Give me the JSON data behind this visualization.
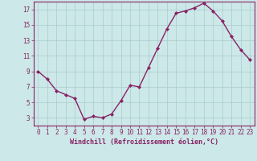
{
  "x": [
    0,
    1,
    2,
    3,
    4,
    5,
    6,
    7,
    8,
    9,
    10,
    11,
    12,
    13,
    14,
    15,
    16,
    17,
    18,
    19,
    20,
    21,
    22,
    23
  ],
  "y": [
    9,
    8,
    6.5,
    6,
    5.5,
    2.8,
    3.2,
    3.0,
    3.5,
    5.2,
    7.2,
    7.0,
    9.5,
    12.0,
    14.5,
    16.5,
    16.8,
    17.2,
    17.8,
    16.8,
    15.5,
    13.5,
    11.8,
    10.5
  ],
  "line_color": "#882266",
  "marker": "D",
  "marker_size": 2,
  "bg_color": "#cce8e8",
  "grid_color": "#aacccc",
  "xlabel": "Windchill (Refroidissement éolien,°C)",
  "xlabel_color": "#882266",
  "tick_color": "#882266",
  "spine_color": "#882266",
  "ylim": [
    2,
    18
  ],
  "xlim": [
    -0.5,
    23.5
  ],
  "yticks": [
    3,
    5,
    7,
    9,
    11,
    13,
    15,
    17
  ],
  "xticks": [
    0,
    1,
    2,
    3,
    4,
    5,
    6,
    7,
    8,
    9,
    10,
    11,
    12,
    13,
    14,
    15,
    16,
    17,
    18,
    19,
    20,
    21,
    22,
    23
  ],
  "font_family": "monospace",
  "tick_fontsize": 5.5,
  "xlabel_fontsize": 6.0
}
